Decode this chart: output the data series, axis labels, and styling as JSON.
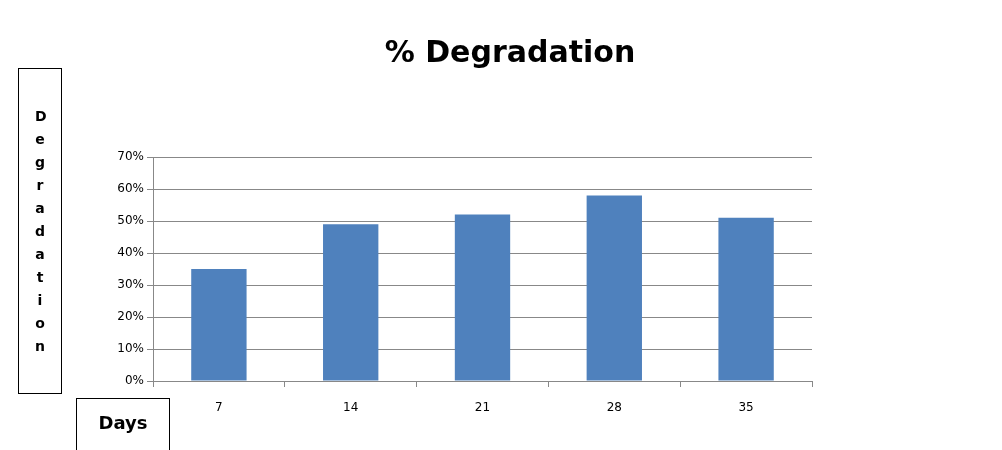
{
  "chart_data": {
    "type": "bar",
    "title": "% Degradation",
    "ylabel": "Degradation",
    "xlabel": "Days",
    "categories": [
      "7",
      "14",
      "21",
      "28",
      "35"
    ],
    "values": [
      35,
      49,
      52,
      58,
      51
    ],
    "color": "#4f81bd",
    "ylim": [
      0,
      70
    ],
    "yticks": [
      {
        "value": 0,
        "label": "0%"
      },
      {
        "value": 10,
        "label": "10%"
      },
      {
        "value": 20,
        "label": "20%"
      },
      {
        "value": 30,
        "label": "30%"
      },
      {
        "value": 40,
        "label": "40%"
      },
      {
        "value": 50,
        "label": "50%"
      },
      {
        "value": 60,
        "label": "60%"
      },
      {
        "value": 70,
        "label": "70%"
      }
    ],
    "grid": "y",
    "legend": false
  }
}
